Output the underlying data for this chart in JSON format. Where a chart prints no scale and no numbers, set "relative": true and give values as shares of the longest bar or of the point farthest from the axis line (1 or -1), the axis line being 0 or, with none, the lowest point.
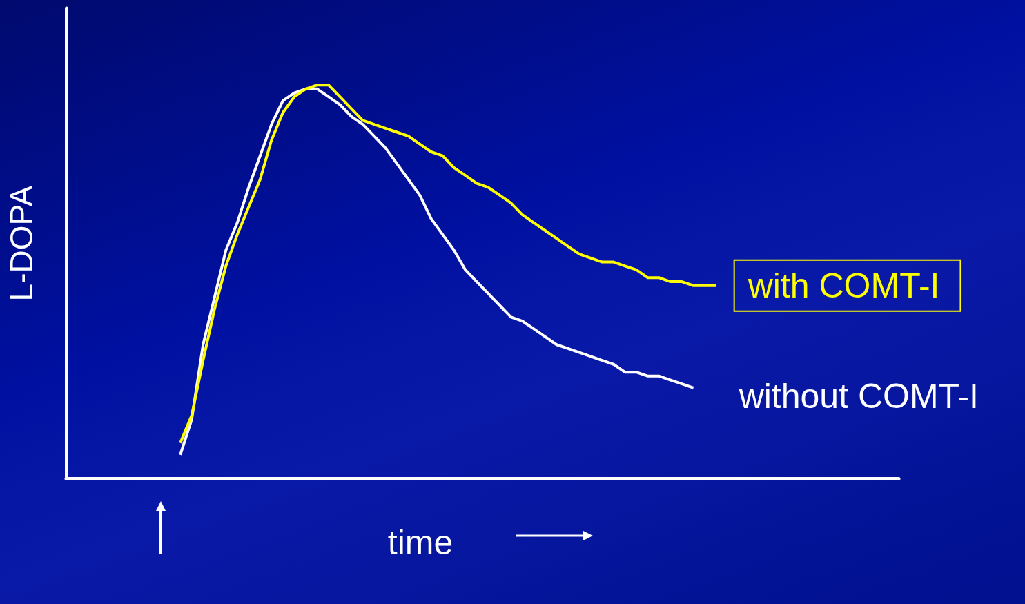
{
  "chart_data": {
    "type": "line",
    "relative": true,
    "xlabel": "time",
    "ylabel": "L-DOPA",
    "marker": "none",
    "categories": [
      null,
      null,
      null,
      null,
      null,
      null,
      null,
      null,
      null,
      null,
      null,
      null,
      null,
      null,
      null,
      null,
      null,
      null,
      null,
      null,
      null,
      null,
      null,
      null,
      null,
      null,
      null,
      null,
      null,
      null,
      null,
      null,
      null,
      null,
      null,
      null,
      null,
      null,
      null,
      null,
      null,
      null,
      null,
      null,
      null,
      null,
      null,
      null,
      null,
      null,
      null,
      null,
      null,
      null,
      null,
      null,
      null,
      null,
      null,
      null,
      null,
      null,
      null,
      null,
      null,
      null,
      null,
      null,
      null,
      null,
      null,
      null,
      null,
      null
    ],
    "series": [
      {
        "name": "with COMT-I",
        "color": "#ffff00",
        "values": [
          null,
          null,
          null,
          null,
          null,
          null,
          null,
          null,
          null,
          null,
          0.09,
          0.16,
          0.3,
          0.43,
          0.54,
          0.62,
          0.69,
          0.76,
          0.86,
          0.93,
          0.97,
          0.99,
          1,
          1,
          0.97,
          0.94,
          0.91,
          0.9,
          0.89,
          0.88,
          0.87,
          0.85,
          0.83,
          0.82,
          0.79,
          0.77,
          0.75,
          0.74,
          0.72,
          0.7,
          0.67,
          0.65,
          0.63,
          0.61,
          0.59,
          0.57,
          0.56,
          0.55,
          0.55,
          0.54,
          0.53,
          0.51,
          0.51,
          0.5,
          0.5,
          0.49,
          0.49,
          0.49,
          null,
          null,
          null,
          null,
          null,
          null,
          null,
          null,
          null,
          null,
          null,
          null,
          null,
          null,
          null,
          null
        ]
      },
      {
        "name": "without COMT-I",
        "color": "#ffffff",
        "values": [
          null,
          null,
          null,
          null,
          null,
          null,
          null,
          null,
          null,
          null,
          0.06,
          0.15,
          0.34,
          0.46,
          0.58,
          0.65,
          0.74,
          0.82,
          0.9,
          0.96,
          0.98,
          0.99,
          0.99,
          0.97,
          0.95,
          0.92,
          0.9,
          0.87,
          0.84,
          0.8,
          0.76,
          0.72,
          0.66,
          0.62,
          0.58,
          0.53,
          0.5,
          0.47,
          0.44,
          0.41,
          0.4,
          0.38,
          0.36,
          0.34,
          0.33,
          0.32,
          0.31,
          0.3,
          0.29,
          0.27,
          0.27,
          0.26,
          0.26,
          0.25,
          0.24,
          0.23,
          null,
          null,
          null,
          null,
          null,
          null,
          null,
          null,
          null,
          null,
          null,
          null,
          null,
          null,
          null,
          null,
          null,
          null
        ]
      }
    ]
  }
}
